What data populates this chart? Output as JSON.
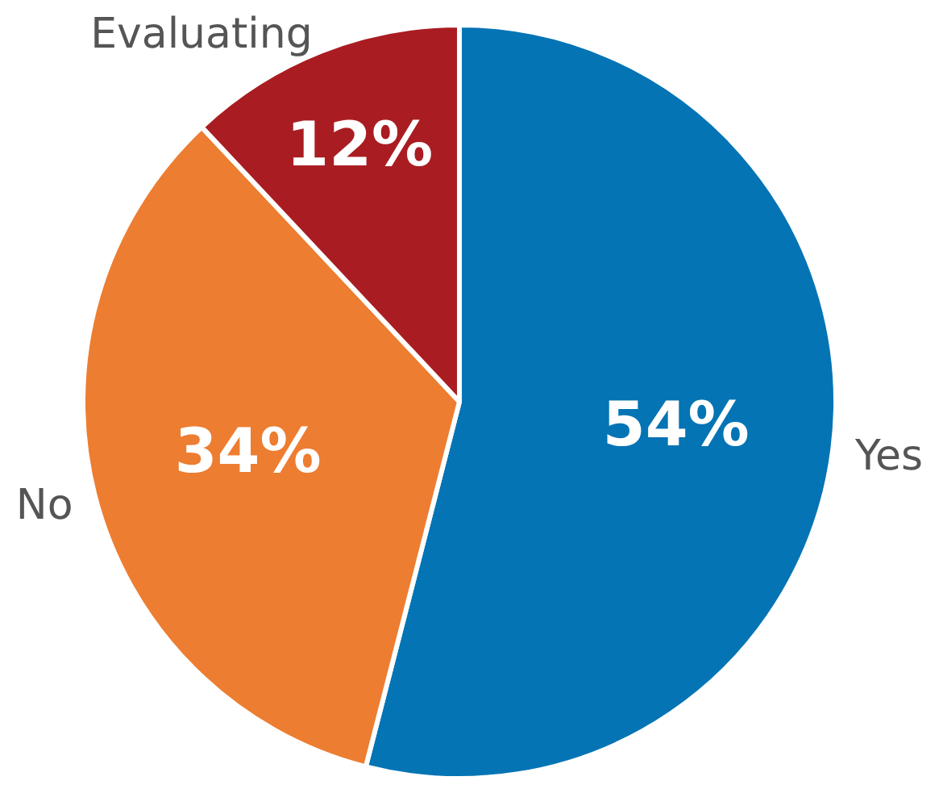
{
  "chart_data": {
    "type": "pie",
    "categories": [
      "Yes",
      "No",
      "Evaluating"
    ],
    "values": [
      54,
      34,
      12
    ],
    "colors": [
      "#0474b4",
      "#ed7d31",
      "#a91d22"
    ],
    "value_labels": [
      "54%",
      "34%",
      "12%"
    ]
  }
}
